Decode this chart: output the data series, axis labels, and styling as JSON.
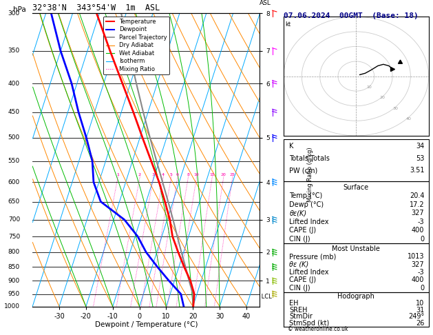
{
  "title_left": "32°38'N  343°54'W  1m  ASL",
  "title_right": "07.06.2024  00GMT  (Base: 18)",
  "xlabel": "Dewpoint / Temperature (°C)",
  "pressure_levels": [
    300,
    350,
    400,
    450,
    500,
    550,
    600,
    650,
    700,
    750,
    800,
    850,
    900,
    950,
    1000
  ],
  "temp_range": [
    -40,
    45
  ],
  "temp_ticks": [
    -30,
    -20,
    -10,
    0,
    10,
    20,
    30,
    40
  ],
  "km_ticks": [
    1,
    2,
    3,
    4,
    5,
    6,
    7,
    8
  ],
  "km_pressures": [
    900,
    800,
    700,
    600,
    500,
    400,
    350,
    300
  ],
  "lcl_pressure": 960,
  "mixing_ratio_labels": [
    1,
    2,
    3,
    4,
    5,
    6,
    8,
    10,
    15,
    20,
    25
  ],
  "temp_profile_p": [
    1013,
    950,
    900,
    850,
    800,
    750,
    700,
    650,
    600,
    550,
    500,
    450,
    400,
    350,
    300
  ],
  "temp_profile_t": [
    20.4,
    19.0,
    16.0,
    12.0,
    8.0,
    4.0,
    1.0,
    -3.0,
    -7.5,
    -13.0,
    -19.0,
    -25.5,
    -33.0,
    -41.5,
    -51.0
  ],
  "dewp_profile_p": [
    1013,
    950,
    900,
    850,
    800,
    750,
    700,
    650,
    600,
    550,
    500,
    450,
    400,
    350,
    300
  ],
  "dewp_profile_t": [
    17.2,
    14.0,
    8.0,
    2.0,
    -4.0,
    -9.0,
    -16.0,
    -27.0,
    -32.0,
    -35.0,
    -40.0,
    -46.0,
    -52.0,
    -60.0,
    -68.0
  ],
  "parcel_profile_p": [
    1013,
    950,
    900,
    850,
    800,
    750,
    700,
    650,
    600,
    550,
    500,
    450,
    400,
    350,
    300
  ],
  "parcel_profile_t": [
    20.4,
    18.5,
    15.5,
    12.5,
    9.2,
    5.8,
    2.2,
    -1.8,
    -6.2,
    -11.0,
    -16.2,
    -21.8,
    -27.8,
    -34.5,
    -41.8
  ],
  "wet_adiabat_base_temps": [
    -20,
    -10,
    0,
    5,
    10,
    15,
    20,
    25,
    30
  ],
  "mixing_ratio_lines": [
    1,
    2,
    3,
    4,
    5,
    6,
    8,
    10,
    15,
    20,
    25
  ],
  "skew_factor": 35,
  "info_K": 34,
  "info_TT": 53,
  "info_PW": 3.51,
  "surface_temp": 20.4,
  "surface_dewp": 17.2,
  "surface_theta_e": 327,
  "surface_LI": -3,
  "surface_CAPE": 400,
  "surface_CIN": 0,
  "mu_pressure": 1013,
  "mu_theta_e": 327,
  "mu_LI": -3,
  "mu_CAPE": 400,
  "mu_CIN": 0,
  "hodo_EH": 10,
  "hodo_SREH": 31,
  "hodo_StmDir": 249,
  "hodo_StmSpd": 26,
  "colors": {
    "temp": "#ff0000",
    "dewp": "#0000ff",
    "parcel": "#888888",
    "isotherm": "#00aaff",
    "dry_adiabat": "#ff8800",
    "wet_adiabat": "#00bb00",
    "mixing_ratio": "#ff00aa"
  },
  "wind_barb_data": [
    {
      "p": 300,
      "color": "#ff0000"
    },
    {
      "p": 350,
      "color": "#ff00ff"
    },
    {
      "p": 400,
      "color": "#cc00ff"
    },
    {
      "p": 450,
      "color": "#8800ff"
    },
    {
      "p": 500,
      "color": "#0000ff"
    },
    {
      "p": 600,
      "color": "#0088ff"
    },
    {
      "p": 700,
      "color": "#0088cc"
    },
    {
      "p": 800,
      "color": "#00aa00"
    },
    {
      "p": 850,
      "color": "#00aa00"
    },
    {
      "p": 900,
      "color": "#88bb00"
    },
    {
      "p": 950,
      "color": "#aaaa00"
    }
  ]
}
